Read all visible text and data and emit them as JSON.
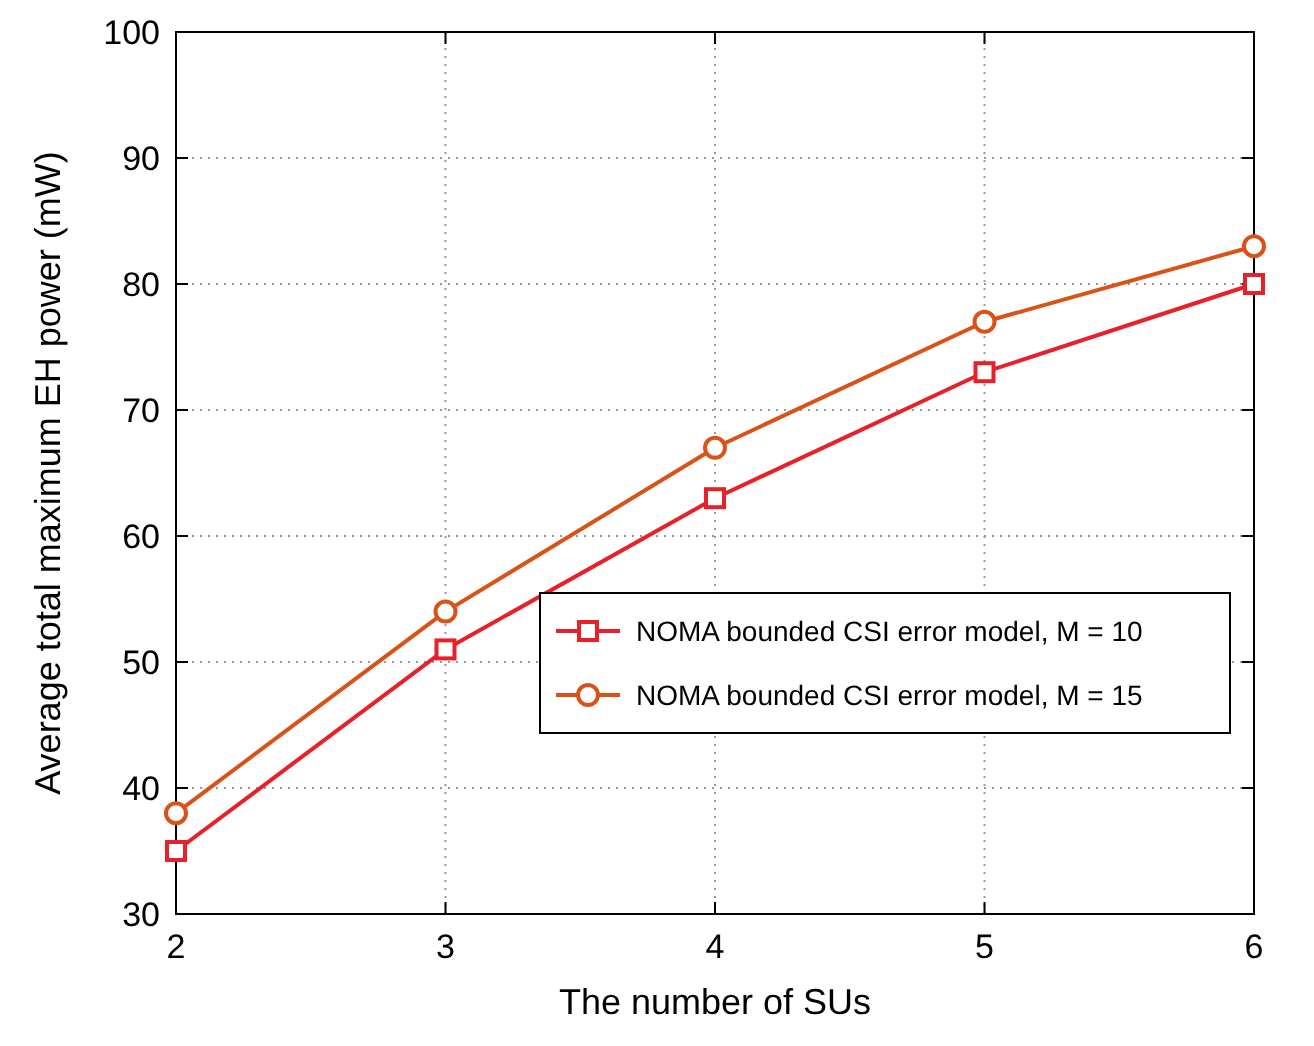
{
  "chart_data": {
    "type": "line",
    "xlabel": "The number of SUs",
    "ylabel": "Average total maximum EH power (mW)",
    "x": [
      2,
      3,
      4,
      5,
      6
    ],
    "xlim": [
      2,
      6
    ],
    "xticks": [
      2,
      3,
      4,
      5,
      6
    ],
    "ylim": [
      30,
      100
    ],
    "yticks": [
      30,
      40,
      50,
      60,
      70,
      80,
      90,
      100
    ],
    "grid": true,
    "legend": "right",
    "series": [
      {
        "name": "NOMA bounded CSI error model, M = 10",
        "color": "#e8202a",
        "marker": "square",
        "values": [
          35,
          51,
          63,
          73,
          80
        ]
      },
      {
        "name": "NOMA bounded CSI error model, M = 15",
        "color": "#d95319",
        "marker": "circle",
        "values": [
          38,
          54,
          67,
          77,
          83
        ]
      }
    ]
  }
}
